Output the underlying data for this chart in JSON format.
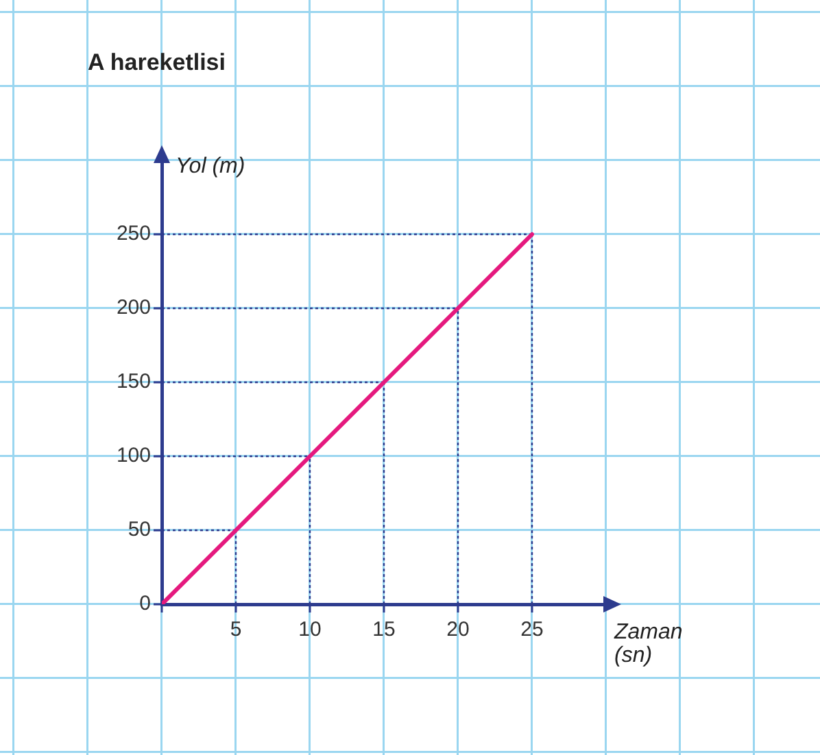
{
  "chart_data": {
    "type": "line",
    "title": "A hareketlisi",
    "xlabel": "Zaman (sn)",
    "ylabel": "Yol (m)",
    "x": [
      0,
      5,
      10,
      15,
      20,
      25
    ],
    "series": [
      {
        "color": "#e5197e",
        "values": [
          0,
          50,
          100,
          150,
          200,
          250
        ]
      }
    ],
    "xlim": [
      0,
      30
    ],
    "ylim": [
      0,
      300
    ],
    "xticks": [
      {
        "value": 0,
        "label": null
      },
      5,
      10,
      15,
      20,
      25
    ],
    "yticks": [
      0,
      50,
      100,
      150,
      200,
      250
    ],
    "ref_lines": [
      {
        "axis": "x",
        "value": 5,
        "line_style": "dotted"
      },
      {
        "axis": "x",
        "value": 10,
        "line_style": "dotted"
      },
      {
        "axis": "x",
        "value": 15,
        "line_style": "dotted"
      },
      {
        "axis": "x",
        "value": 20,
        "line_style": "dotted"
      },
      {
        "axis": "x",
        "value": 25,
        "line_style": "dotted"
      },
      {
        "axis": "y",
        "value": 50,
        "line_style": "dotted"
      },
      {
        "axis": "y",
        "value": 100,
        "line_style": "dotted"
      },
      {
        "axis": "y",
        "value": 150,
        "line_style": "dotted"
      },
      {
        "axis": "y",
        "value": 200,
        "line_style": "dotted"
      },
      {
        "axis": "y",
        "value": 250,
        "line_style": "dotted"
      }
    ],
    "legend": false,
    "marker": "none",
    "line_style": "solid"
  }
}
